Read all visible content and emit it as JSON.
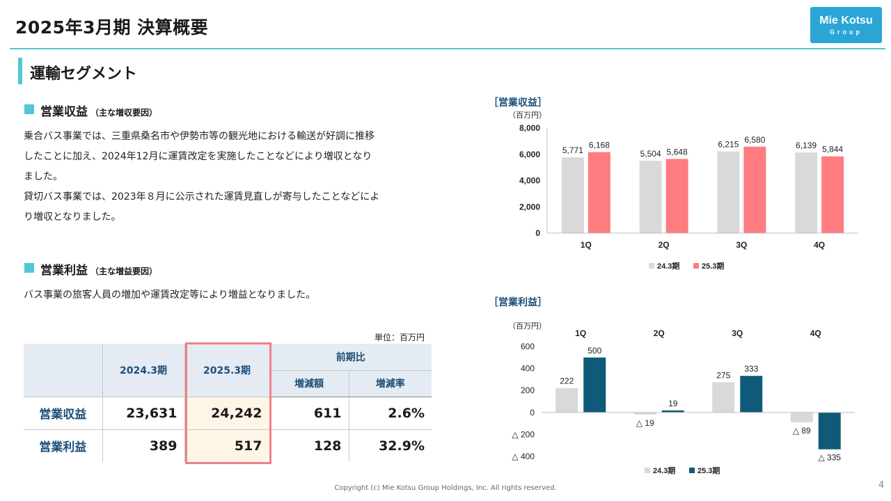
{
  "header": {
    "title": "2025年3月期 決算概要",
    "logo_line1": "Mie Kotsu",
    "logo_line2": "Group"
  },
  "section": {
    "title": "運輸セグメント"
  },
  "revenue_block": {
    "heading": "営業収益",
    "heading_note": "（主な増収要因）",
    "lines": [
      "乗合バス事業では、三重県桑名市や伊勢市等の観光地における輸送が好調に推移",
      "したことに加え、2024年12月に運賃改定を実施したことなどにより増収となり",
      "ました。",
      "貸切バス事業では、2023年８月に公示された運賃見直しが寄与したことなどによ",
      "り増収となりました。"
    ]
  },
  "profit_block": {
    "heading": "営業利益",
    "heading_note": "（主な増益要因）",
    "text": "バス事業の旅客人員の増加や運賃改定等により増益となりました。"
  },
  "table": {
    "unit": "単位：百万円",
    "col_prev": "2024.3期",
    "col_curr": "2025.3期",
    "col_yoy": "前期比",
    "col_diff": "増減額",
    "col_rate": "増減率",
    "rows": [
      {
        "label": "営業収益",
        "prev": "23,631",
        "curr": "24,242",
        "diff": "611",
        "rate": "2.6%"
      },
      {
        "label": "営業利益",
        "prev": "389",
        "curr": "517",
        "diff": "128",
        "rate": "32.9%"
      }
    ]
  },
  "chart_data": [
    {
      "type": "bar",
      "title": "［営業収益］",
      "ylabel": "（百万円）",
      "categories": [
        "1Q",
        "2Q",
        "3Q",
        "4Q"
      ],
      "series": [
        {
          "name": "24.3期",
          "values": [
            5771,
            5504,
            6215,
            6139
          ],
          "labels": [
            "5,771",
            "5,504",
            "6,215",
            "6,139"
          ],
          "color": "#d9d9d9"
        },
        {
          "name": "25.3期",
          "values": [
            6168,
            5648,
            6580,
            5844
          ],
          "labels": [
            "6,168",
            "5,648",
            "6,580",
            "5,844"
          ],
          "color": "#ff7c80"
        }
      ],
      "ylim": [
        0,
        8000
      ],
      "yticks": [
        0,
        2000,
        4000,
        6000,
        8000
      ],
      "ytick_labels": [
        "0",
        "2,000",
        "4,000",
        "6,000",
        "8,000"
      ],
      "legend": "bottom"
    },
    {
      "type": "bar",
      "title": "［営業利益］",
      "ylabel": "（百万円）",
      "categories": [
        "1Q",
        "2Q",
        "3Q",
        "4Q"
      ],
      "series": [
        {
          "name": "24.3期",
          "values": [
            222,
            -19,
            275,
            -89
          ],
          "labels": [
            "222",
            "△ 19",
            "275",
            "△ 89"
          ],
          "color": "#d9d9d9"
        },
        {
          "name": "25.3期",
          "values": [
            500,
            19,
            333,
            -335
          ],
          "labels": [
            "500",
            "19",
            "333",
            "△ 335"
          ],
          "color": "#0f5a78"
        }
      ],
      "ylim": [
        -400,
        600
      ],
      "yticks": [
        -400,
        -200,
        0,
        200,
        400,
        600
      ],
      "ytick_labels": [
        "△ 400",
        "△ 200",
        "0",
        "200",
        "400",
        "600"
      ],
      "legend": "bottom"
    }
  ],
  "footer": {
    "copyright": "Copyright (c) Mie Kotsu Group Holdings, Inc. All rights reserved.",
    "page": "4"
  },
  "colors": {
    "accent": "#4fc8d8",
    "logo_bg": "#2aa6d6",
    "navy": "#1d4e78",
    "highlight_border": "#f07f8a",
    "highlight_fill": "#fdf6e6"
  }
}
